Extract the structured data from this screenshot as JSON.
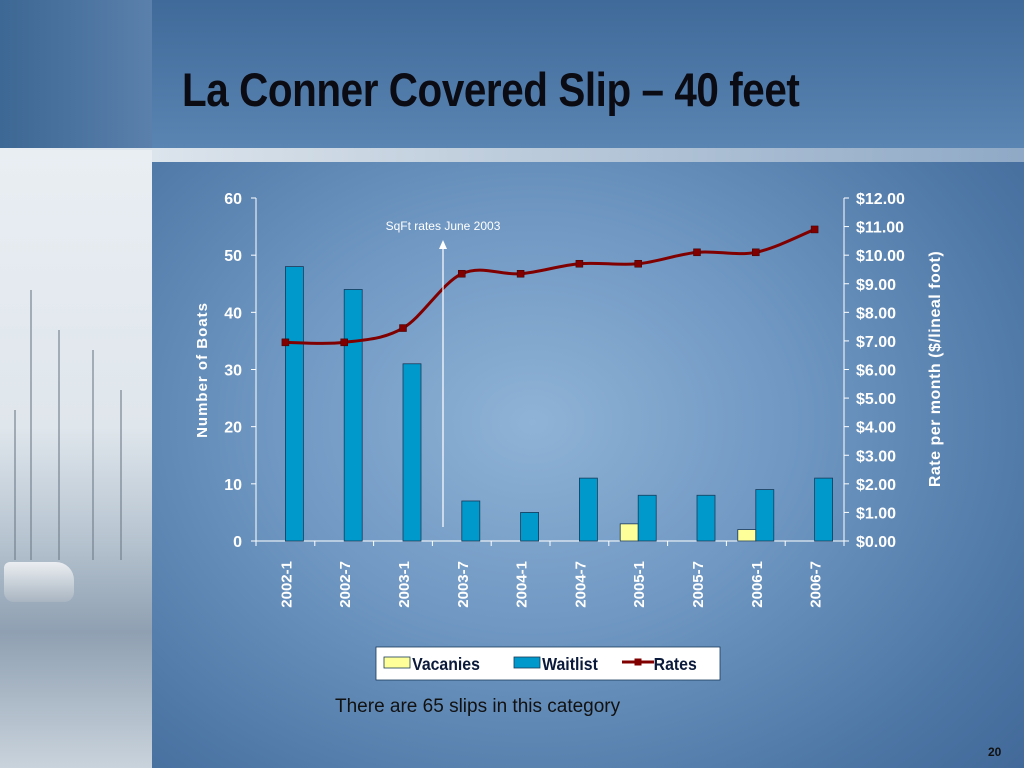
{
  "slide": {
    "title": "La Conner Covered Slip – 40 feet",
    "caption": "There are 65 slips in this category",
    "page_number": "20"
  },
  "chart_data": {
    "type": "bar",
    "categories": [
      "2002-1",
      "2002-7",
      "2003-1",
      "2003-7",
      "2004-1",
      "2004-7",
      "2005-1",
      "2005-7",
      "2006-1",
      "2006-7"
    ],
    "series": [
      {
        "name": "Vacanies",
        "type": "bar",
        "axis": "left",
        "color": "#ffff99",
        "values": [
          0,
          0,
          0,
          0,
          0,
          0,
          3,
          0,
          2,
          0
        ]
      },
      {
        "name": "Waitlist",
        "type": "bar",
        "axis": "left",
        "color": "#0099cc",
        "values": [
          48,
          44,
          31,
          7,
          5,
          11,
          8,
          8,
          9,
          11
        ]
      },
      {
        "name": "Rates",
        "type": "line",
        "axis": "right",
        "color": "#800000",
        "values": [
          6.95,
          6.95,
          7.45,
          9.35,
          9.35,
          9.7,
          9.7,
          10.1,
          10.1,
          10.9
        ]
      }
    ],
    "ylabel": "Number of Boats",
    "y2label": "Rate per month ($/lineal foot)",
    "ylim": [
      0,
      60
    ],
    "y2lim": [
      0,
      12
    ],
    "yticks": [
      "0",
      "10",
      "20",
      "30",
      "40",
      "50",
      "60"
    ],
    "y2ticks": [
      "$0.00",
      "$1.00",
      "$2.00",
      "$3.00",
      "$4.00",
      "$5.00",
      "$6.00",
      "$7.00",
      "$8.00",
      "$9.00",
      "$10.00",
      "$11.00",
      "$12.00"
    ],
    "annotation": "SqFt rates June 2003",
    "legend_position": "bottom",
    "grid": false
  }
}
